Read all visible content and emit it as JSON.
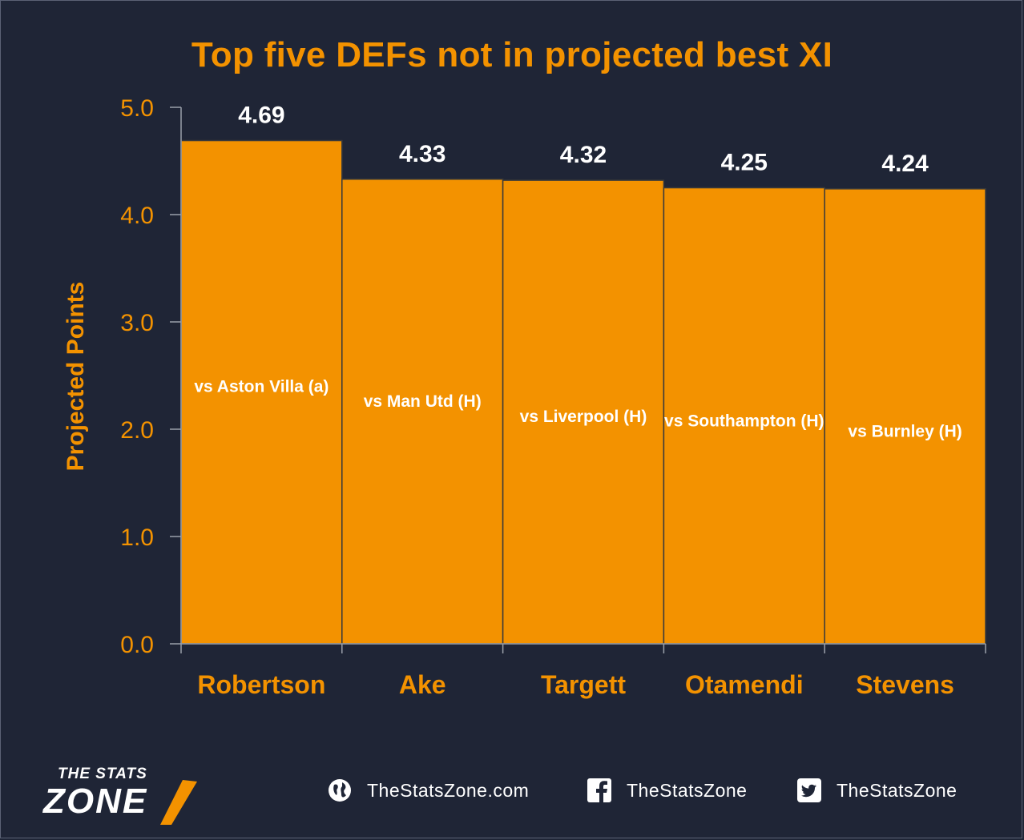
{
  "title": "Top five DEFs not in projected best XI",
  "chart_data": {
    "type": "bar",
    "title": "Top five DEFs not in projected best XI",
    "xlabel": "",
    "ylabel": "Projected Points",
    "ylim": [
      0,
      5
    ],
    "yticks": [
      "0.0",
      "1.0",
      "2.0",
      "3.0",
      "4.0",
      "5.0"
    ],
    "grid": false,
    "bar_color": "#f39200",
    "categories": [
      "Robertson",
      "Ake",
      "Targett",
      "Otamendi",
      "Stevens"
    ],
    "values": [
      4.69,
      4.33,
      4.32,
      4.25,
      4.24
    ],
    "value_labels": [
      "4.69",
      "4.33",
      "4.32",
      "4.25",
      "4.24"
    ],
    "annotations": [
      "vs Aston Villa (a)",
      "vs Man Utd (H)",
      "vs Liverpool (H)",
      "vs Southampton (H)",
      "vs Burnley (H)"
    ],
    "annotation_levels": [
      2.4,
      2.26,
      2.12,
      2.08,
      1.98
    ]
  },
  "colors": {
    "background": "#1f2536",
    "accent": "#f39200",
    "text": "#ffffff"
  },
  "footer": {
    "logo_top": "THE STATS",
    "logo_bottom": "ZONE",
    "website": "TheStatsZone.com",
    "facebook": "TheStatsZone",
    "twitter": "TheStatsZone",
    "icons": [
      "globe-icon",
      "facebook-icon",
      "twitter-icon"
    ]
  }
}
